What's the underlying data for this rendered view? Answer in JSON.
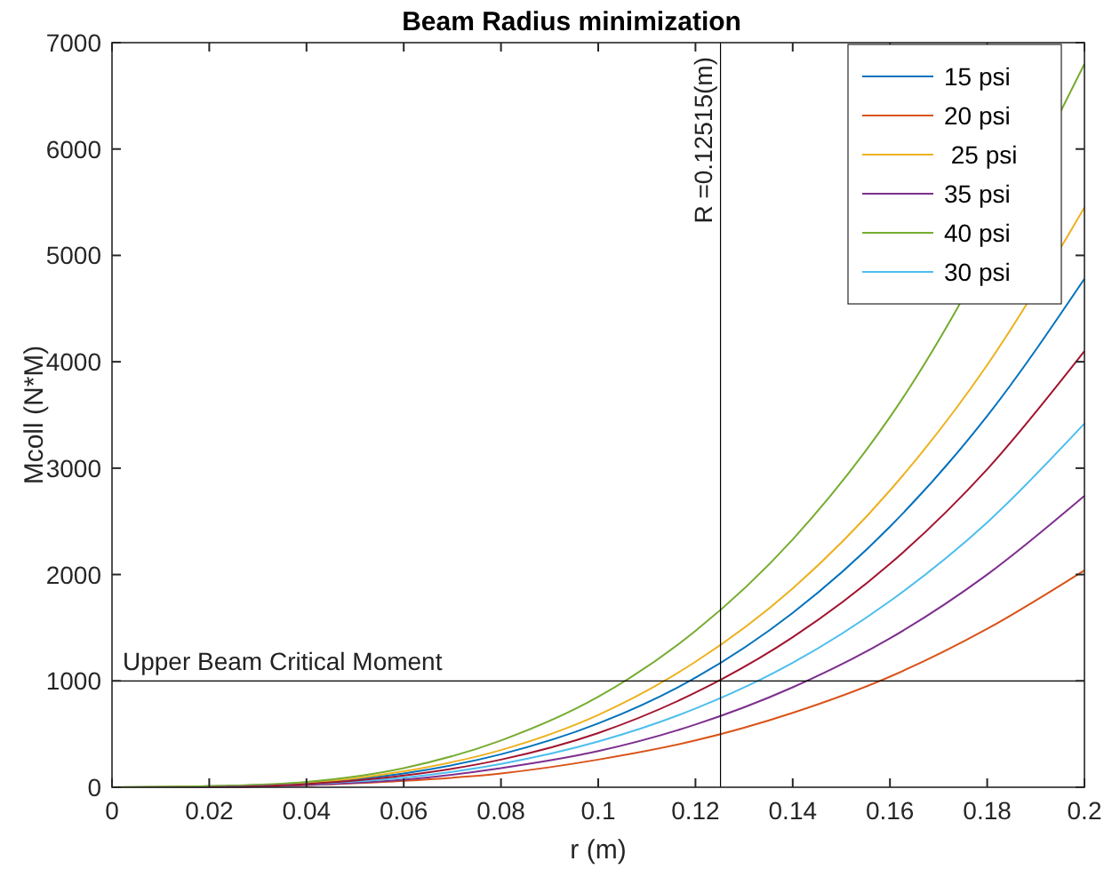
{
  "chart_data": {
    "type": "line",
    "title": "Beam Radius minimization",
    "xlabel": "r (m)",
    "ylabel": "Mcoll (N*M)",
    "x": [
      0,
      0.02,
      0.04,
      0.06,
      0.08,
      0.1,
      0.12,
      0.14,
      0.16,
      0.18,
      0.2
    ],
    "series": [
      {
        "name": "15 psi",
        "color": "#0072bd",
        "values": [
          0,
          10,
          40,
          130,
          310,
          600,
          1030,
          1640,
          2450,
          3490,
          4780
        ]
      },
      {
        "name": "20 psi",
        "color": "#d95319",
        "values": [
          0,
          0,
          20,
          60,
          130,
          260,
          440,
          700,
          1040,
          1490,
          2040
        ]
      },
      {
        "name": " 25 psi",
        "color": "#edb120",
        "values": [
          0,
          10,
          40,
          150,
          350,
          680,
          1180,
          1870,
          2790,
          3970,
          5450
        ]
      },
      {
        "name": "35 psi",
        "color": "#7e2f8e",
        "values": [
          0,
          0,
          20,
          70,
          180,
          340,
          590,
          940,
          1400,
          2000,
          2740
        ]
      },
      {
        "name": "40 psi",
        "color": "#77ac30",
        "x": [
          0,
          0.02,
          0.04,
          0.06,
          0.08,
          0.1,
          0.12,
          0.14,
          0.16,
          0.2
        ],
        "values": [
          0,
          10,
          50,
          180,
          440,
          850,
          1470,
          2330,
          3480,
          6800
        ]
      },
      {
        "name": "30 psi",
        "color": "#4dbeee",
        "values": [
          null,
          0,
          30,
          90,
          220,
          430,
          740,
          1170,
          1750,
          2490,
          3420
        ]
      },
      {
        "color": "#a2142f",
        "x": [
          0.02,
          0.04,
          0.06,
          0.08,
          0.1,
          0.12,
          0.14,
          0.16,
          0.18,
          0.2
        ],
        "values": [
          0,
          30,
          110,
          260,
          510,
          890,
          1410,
          2100,
          2990,
          4100
        ]
      }
    ],
    "xlim": [
      0,
      0.2
    ],
    "xticks": [
      0,
      0.02,
      0.04,
      0.06,
      0.08,
      0.1,
      0.12,
      0.14,
      0.16,
      0.18,
      0.2
    ],
    "ylim": [
      0,
      7000
    ],
    "yticks": [
      0,
      1000,
      2000,
      3000,
      4000,
      5000,
      6000,
      7000
    ],
    "ref_lines": [
      {
        "axis": "y",
        "value": 1000,
        "label": "Upper Beam Critical Moment",
        "color": "#000000"
      },
      {
        "axis": "x",
        "value": 0.12515,
        "label": "R =0.12515(m)",
        "color": "#000000"
      }
    ],
    "grid": false,
    "legend": "top right",
    "marker": "none",
    "line_style": "solid"
  }
}
